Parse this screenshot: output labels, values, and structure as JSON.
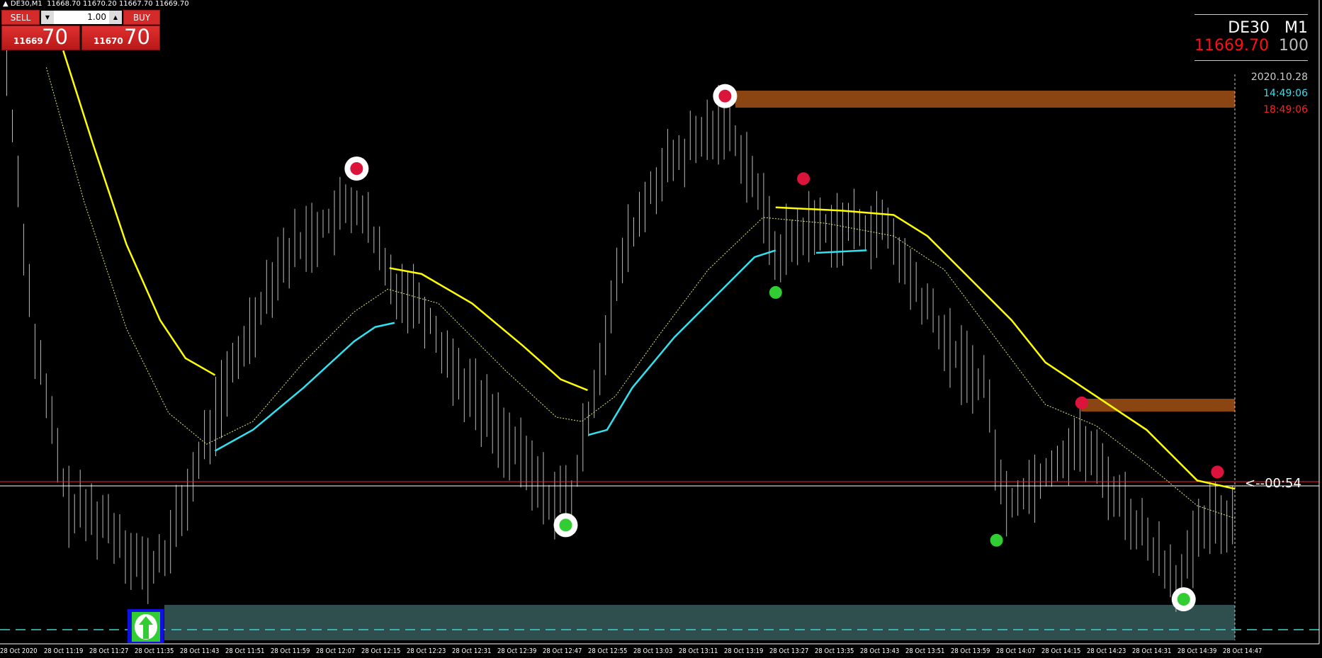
{
  "header": {
    "symbol": "DE30,M1",
    "ohlc": "11668.70 11670.20 11667.70 11669.70"
  },
  "trade_panel": {
    "sell_label": "SELL",
    "buy_label": "BUY",
    "lot": "1.00",
    "sell_price_small": "11669",
    "sell_price_big": "70",
    "buy_price_small": "11670",
    "buy_price_big": "70"
  },
  "info_panel": {
    "symbol": "DE30",
    "timeframe": "M1",
    "price": "11669.70",
    "spread": "100",
    "date": "2020.10.28",
    "local_time": "14:49:06",
    "server_time": "18:49:06"
  },
  "countdown": "<--00:54",
  "colors": {
    "upper_band": "#ffff00",
    "lower_band": "#33e0f0",
    "resistance_zone": "#8b4513",
    "support_zone": "#2f4f4f",
    "sell_signal": "#dc143c",
    "buy_signal": "#32cd32",
    "bid_line": "#ff2020"
  },
  "time_axis": [
    "28 Oct 2020",
    "28 Oct 11:19",
    "28 Oct 11:27",
    "28 Oct 11:35",
    "28 Oct 11:43",
    "28 Oct 11:51",
    "28 Oct 11:59",
    "28 Oct 12:07",
    "28 Oct 12:15",
    "28 Oct 12:23",
    "28 Oct 12:31",
    "28 Oct 12:39",
    "28 Oct 12:47",
    "28 Oct 12:55",
    "28 Oct 13:03",
    "28 Oct 13:11",
    "28 Oct 13:19",
    "28 Oct 13:27",
    "28 Oct 13:35",
    "28 Oct 13:43",
    "28 Oct 13:51",
    "28 Oct 13:59",
    "28 Oct 14:07",
    "28 Oct 14:15",
    "28 Oct 14:23",
    "28 Oct 14:31",
    "28 Oct 14:39",
    "28 Oct 14:47"
  ]
}
